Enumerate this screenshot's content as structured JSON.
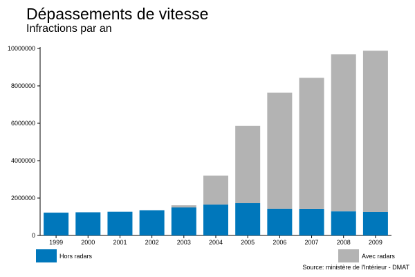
{
  "title": "Dépassements de vitesse",
  "subtitle": "Infractions par an",
  "source": "Source: ministère de l'Intérieur - DMAT",
  "colors": {
    "hors_radars": "#0077bb",
    "avec_radars": "#b3b3b3"
  },
  "chart_data": {
    "type": "bar",
    "stacked": true,
    "title": "Dépassements de vitesse",
    "subtitle": "Infractions par an",
    "categories": [
      "1999",
      "2000",
      "2001",
      "2002",
      "2003",
      "2004",
      "2005",
      "2006",
      "2007",
      "2008",
      "2009"
    ],
    "series": [
      {
        "name": "Hors radars",
        "color": "#0077bb",
        "values": [
          1220000,
          1240000,
          1270000,
          1350000,
          1500000,
          1650000,
          1740000,
          1420000,
          1410000,
          1290000,
          1260000
        ]
      },
      {
        "name": "Avec radars",
        "color": "#b3b3b3",
        "values": [
          0,
          0,
          0,
          0,
          120000,
          1550000,
          4120000,
          6220000,
          7020000,
          8400000,
          8620000
        ]
      }
    ],
    "yticks": [
      "0",
      "2000000",
      "4000000",
      "6000000",
      "8000000",
      "10000000"
    ],
    "ylim": [
      0,
      10000000
    ],
    "grid": false,
    "legend_position": "bottom"
  }
}
